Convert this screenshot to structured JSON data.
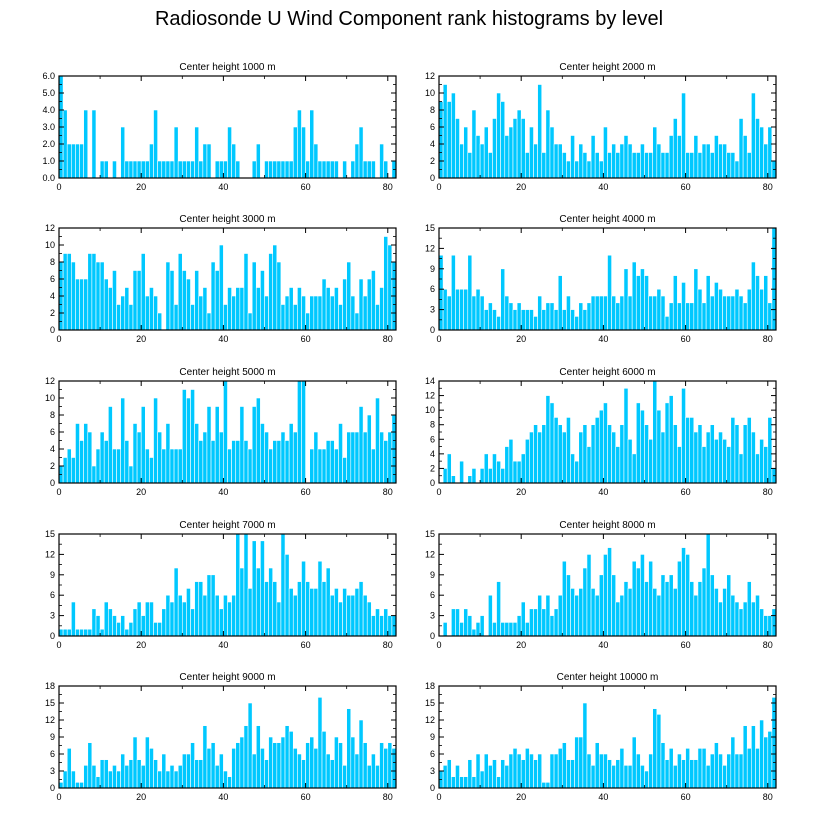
{
  "title": "Radiosonde U Wind Component rank histograms by level",
  "colors": {
    "bar": "#00c8ff",
    "bar_edge": "#ffffff",
    "axis": "#000000"
  },
  "chart_data": [
    {
      "type": "bar",
      "title": "Center height 1000 m",
      "xlim": [
        0,
        82
      ],
      "ylim": [
        0,
        6
      ],
      "xticks": [
        0,
        20,
        40,
        60,
        80
      ],
      "yticks": [
        0,
        1,
        2,
        3,
        4,
        5,
        6
      ],
      "ytick_labels": [
        "0.0",
        "1.0",
        "2.0",
        "3.0",
        "4.0",
        "5.0",
        "6.0"
      ],
      "values": [
        6,
        4,
        2,
        2,
        2,
        2,
        4,
        0,
        4,
        0,
        1,
        1,
        0,
        1,
        0,
        3,
        1,
        1,
        1,
        1,
        1,
        1,
        2,
        4,
        1,
        1,
        1,
        1,
        3,
        1,
        1,
        1,
        1,
        3,
        1,
        2,
        2,
        0,
        1,
        1,
        1,
        3,
        2,
        1,
        0,
        0,
        0,
        1,
        2,
        0,
        1,
        1,
        1,
        1,
        1,
        1,
        1,
        3,
        4,
        3,
        1,
        4,
        2,
        1,
        1,
        1,
        1,
        1,
        0,
        1,
        0,
        1,
        2,
        3,
        1,
        1,
        1,
        0,
        2,
        1,
        0,
        1
      ]
    },
    {
      "type": "bar",
      "title": "Center height 2000 m",
      "xlim": [
        0,
        82
      ],
      "ylim": [
        0,
        12
      ],
      "xticks": [
        0,
        20,
        40,
        60,
        80
      ],
      "yticks": [
        0,
        2,
        4,
        6,
        8,
        10,
        12
      ],
      "ytick_labels": [
        "0",
        "2",
        "4",
        "6",
        "8",
        "10",
        "12"
      ],
      "values": [
        9,
        11,
        9,
        10,
        7,
        4,
        6,
        3,
        8,
        5,
        4,
        6,
        3,
        7,
        10,
        9,
        5,
        6,
        7,
        8,
        7,
        3,
        6,
        4,
        11,
        3,
        8,
        6,
        4,
        4,
        3,
        2,
        5,
        2,
        4,
        3,
        2,
        5,
        3,
        2,
        6,
        3,
        4,
        3,
        4,
        5,
        4,
        3,
        3,
        4,
        3,
        3,
        6,
        4,
        3,
        3,
        5,
        7,
        5,
        10,
        3,
        3,
        5,
        3,
        4,
        4,
        3,
        5,
        4,
        4,
        3,
        3,
        2,
        7,
        5,
        3,
        10,
        7,
        6,
        4,
        6,
        2
      ]
    },
    {
      "type": "bar",
      "title": "Center height 3000 m",
      "xlim": [
        0,
        82
      ],
      "ylim": [
        0,
        12
      ],
      "xticks": [
        0,
        20,
        40,
        60,
        80
      ],
      "yticks": [
        0,
        2,
        4,
        6,
        8,
        10,
        12
      ],
      "ytick_labels": [
        "0",
        "2",
        "4",
        "6",
        "8",
        "10",
        "12"
      ],
      "values": [
        8,
        9,
        9,
        8,
        6,
        6,
        6,
        9,
        9,
        8,
        8,
        6,
        5,
        7,
        3,
        4,
        5,
        3,
        7,
        7,
        9,
        4,
        5,
        4,
        2,
        0,
        8,
        7,
        3,
        9,
        7,
        6,
        3,
        7,
        4,
        5,
        2,
        8,
        7,
        10,
        3,
        5,
        4,
        5,
        5,
        9,
        2,
        8,
        5,
        7,
        4,
        9,
        10,
        8,
        3,
        4,
        5,
        3,
        5,
        4,
        2,
        4,
        4,
        4,
        6,
        5,
        4,
        5,
        3,
        6,
        8,
        4,
        2,
        6,
        4,
        6,
        7,
        3,
        5,
        11,
        10,
        8
      ]
    },
    {
      "type": "bar",
      "title": "Center height 4000 m",
      "xlim": [
        0,
        82
      ],
      "ylim": [
        0,
        15
      ],
      "xticks": [
        0,
        20,
        40,
        60,
        80
      ],
      "yticks": [
        0,
        3,
        6,
        9,
        12,
        15
      ],
      "ytick_labels": [
        "0",
        "3",
        "6",
        "9",
        "12",
        "15"
      ],
      "values": [
        11,
        6,
        5,
        11,
        6,
        6,
        6,
        11,
        5,
        6,
        5,
        3,
        4,
        3,
        2,
        9,
        5,
        4,
        3,
        4,
        3,
        3,
        3,
        2,
        5,
        3,
        4,
        4,
        3,
        8,
        3,
        5,
        3,
        2,
        4,
        3,
        4,
        5,
        5,
        5,
        5,
        11,
        5,
        4,
        5,
        9,
        5,
        10,
        8,
        9,
        8,
        5,
        5,
        6,
        5,
        2,
        4,
        8,
        4,
        7,
        4,
        4,
        9,
        6,
        4,
        8,
        5,
        7,
        6,
        5,
        5,
        5,
        6,
        5,
        4,
        6,
        10,
        8,
        6,
        8,
        4,
        15
      ]
    },
    {
      "type": "bar",
      "title": "Center height 5000 m",
      "xlim": [
        0,
        82
      ],
      "ylim": [
        0,
        12
      ],
      "xticks": [
        0,
        20,
        40,
        60,
        80
      ],
      "yticks": [
        0,
        2,
        4,
        6,
        8,
        10,
        12
      ],
      "ytick_labels": [
        "0",
        "2",
        "4",
        "6",
        "8",
        "10",
        "12"
      ],
      "values": [
        2,
        3,
        4,
        3,
        7,
        5,
        7,
        6,
        2,
        4,
        6,
        5,
        9,
        4,
        4,
        10,
        5,
        2,
        7,
        6,
        9,
        4,
        3,
        10,
        6,
        4,
        7,
        4,
        4,
        4,
        11,
        10,
        11,
        7,
        5,
        6,
        9,
        5,
        9,
        6,
        12,
        4,
        5,
        5,
        9,
        5,
        4,
        9,
        10,
        7,
        6,
        4,
        5,
        5,
        6,
        5,
        7,
        6,
        12,
        12,
        0,
        4,
        6,
        4,
        4,
        5,
        5,
        4,
        7,
        3,
        6,
        6,
        6,
        9,
        6,
        8,
        4,
        10,
        6,
        5,
        6,
        8
      ]
    },
    {
      "type": "bar",
      "title": "Center height 6000 m",
      "xlim": [
        0,
        82
      ],
      "ylim": [
        0,
        14
      ],
      "xticks": [
        0,
        20,
        40,
        60,
        80
      ],
      "yticks": [
        0,
        2,
        4,
        6,
        8,
        10,
        12,
        14
      ],
      "ytick_labels": [
        "0",
        "2",
        "4",
        "6",
        "8",
        "10",
        "12",
        "14"
      ],
      "values": [
        0,
        2,
        4,
        1,
        0,
        3,
        0,
        1,
        2,
        0,
        2,
        4,
        2,
        4,
        3,
        2,
        5,
        6,
        3,
        3,
        4,
        6,
        7,
        8,
        7,
        8,
        12,
        11,
        9,
        8,
        7,
        9,
        4,
        3,
        7,
        8,
        5,
        8,
        9,
        10,
        11,
        8,
        7,
        5,
        8,
        13,
        6,
        4,
        11,
        10,
        8,
        6,
        14,
        10,
        7,
        11,
        12,
        8,
        5,
        13,
        9,
        9,
        7,
        8,
        5,
        7,
        8,
        6,
        7,
        6,
        5,
        9,
        8,
        4,
        8,
        9,
        7,
        4,
        6,
        5,
        9,
        2
      ]
    },
    {
      "type": "bar",
      "title": "Center height 7000 m",
      "xlim": [
        0,
        82
      ],
      "ylim": [
        0,
        15
      ],
      "xticks": [
        0,
        20,
        40,
        60,
        80
      ],
      "yticks": [
        0,
        3,
        6,
        9,
        12,
        15
      ],
      "ytick_labels": [
        "0",
        "3",
        "6",
        "9",
        "12",
        "15"
      ],
      "values": [
        1,
        1,
        1,
        5,
        1,
        1,
        1,
        1,
        4,
        3,
        1,
        5,
        4,
        3,
        2,
        3,
        1,
        2,
        4,
        5,
        3,
        5,
        5,
        2,
        2,
        4,
        6,
        5,
        10,
        6,
        5,
        7,
        4,
        8,
        8,
        6,
        9,
        9,
        6,
        4,
        6,
        5,
        6,
        15,
        10,
        15,
        7,
        14,
        10,
        14,
        8,
        10,
        8,
        5,
        15,
        12,
        7,
        6,
        8,
        11,
        8,
        7,
        7,
        11,
        8,
        10,
        6,
        7,
        5,
        7,
        6,
        6,
        7,
        8,
        6,
        5,
        3,
        4,
        3,
        4,
        3,
        3
      ]
    },
    {
      "type": "bar",
      "title": "Center height 8000 m",
      "xlim": [
        0,
        82
      ],
      "ylim": [
        0,
        15
      ],
      "xticks": [
        0,
        20,
        40,
        60,
        80
      ],
      "yticks": [
        0,
        3,
        6,
        9,
        12,
        15
      ],
      "ytick_labels": [
        "0",
        "3",
        "6",
        "9",
        "12",
        "15"
      ],
      "values": [
        0,
        2,
        0,
        4,
        4,
        2,
        4,
        3,
        1,
        2,
        3,
        0,
        6,
        2,
        8,
        2,
        2,
        2,
        2,
        3,
        5,
        2,
        4,
        4,
        6,
        4,
        6,
        3,
        4,
        6,
        11,
        9,
        7,
        6,
        7,
        10,
        12,
        7,
        6,
        9,
        12,
        13,
        9,
        5,
        6,
        8,
        7,
        11,
        10,
        12,
        8,
        11,
        7,
        6,
        9,
        8,
        9,
        7,
        11,
        13,
        12,
        8,
        6,
        8,
        10,
        15,
        9,
        7,
        5,
        7,
        9,
        6,
        5,
        4,
        5,
        8,
        5,
        6,
        4,
        3,
        3,
        4
      ]
    },
    {
      "type": "bar",
      "title": "Center height 9000 m",
      "xlim": [
        0,
        82
      ],
      "ylim": [
        0,
        18
      ],
      "xticks": [
        0,
        20,
        40,
        60,
        80
      ],
      "yticks": [
        0,
        3,
        6,
        9,
        12,
        15,
        18
      ],
      "ytick_labels": [
        "0",
        "3",
        "6",
        "9",
        "12",
        "15",
        "18"
      ],
      "values": [
        1,
        3,
        7,
        3,
        1,
        1,
        4,
        8,
        4,
        2,
        5,
        5,
        3,
        4,
        3,
        6,
        4,
        5,
        9,
        5,
        4,
        9,
        7,
        5,
        3,
        6,
        3,
        4,
        3,
        4,
        6,
        6,
        8,
        5,
        5,
        11,
        7,
        8,
        4,
        6,
        3,
        2,
        7,
        8,
        9,
        11,
        15,
        6,
        11,
        7,
        5,
        9,
        8,
        8,
        9,
        11,
        10,
        7,
        6,
        5,
        8,
        9,
        7,
        16,
        10,
        6,
        5,
        9,
        8,
        4,
        14,
        9,
        6,
        12,
        8,
        4,
        6,
        4,
        8,
        7,
        8,
        7
      ]
    },
    {
      "type": "bar",
      "title": "Center height 10000 m",
      "xlim": [
        0,
        82
      ],
      "ylim": [
        0,
        18
      ],
      "xticks": [
        0,
        20,
        40,
        60,
        80
      ],
      "yticks": [
        0,
        3,
        6,
        9,
        12,
        15,
        18
      ],
      "ytick_labels": [
        "0",
        "3",
        "6",
        "9",
        "12",
        "15",
        "18"
      ],
      "values": [
        3,
        4,
        5,
        2,
        4,
        2,
        2,
        5,
        2,
        6,
        3,
        6,
        4,
        5,
        2,
        5,
        4,
        6,
        7,
        6,
        5,
        7,
        6,
        5,
        6,
        1,
        1,
        6,
        6,
        7,
        8,
        5,
        5,
        9,
        9,
        15,
        6,
        4,
        8,
        6,
        6,
        5,
        4,
        5,
        7,
        4,
        4,
        9,
        6,
        4,
        3,
        6,
        14,
        13,
        8,
        5,
        7,
        4,
        6,
        5,
        7,
        5,
        5,
        7,
        7,
        4,
        6,
        8,
        6,
        4,
        6,
        9,
        6,
        6,
        11,
        7,
        11,
        7,
        12,
        9,
        10,
        16
      ]
    }
  ]
}
